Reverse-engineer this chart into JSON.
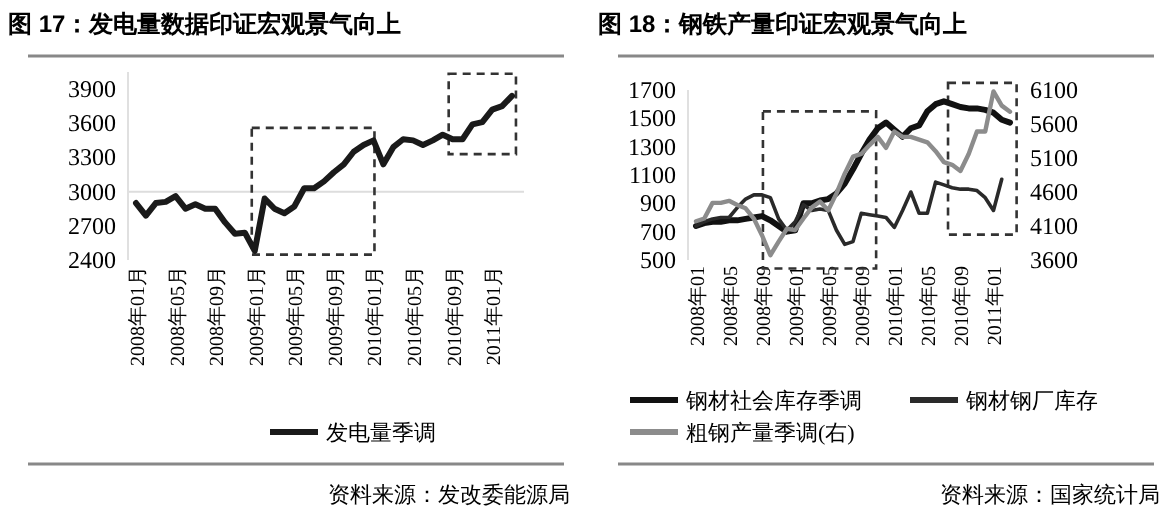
{
  "chart_data": [
    {
      "type": "line",
      "title": "图 17：发电量数据印证宏观景气向上",
      "categories": [
        "2008年01月",
        null,
        null,
        null,
        "2008年05月",
        null,
        null,
        null,
        "2008年09月",
        null,
        null,
        null,
        "2009年01月",
        null,
        null,
        null,
        "2009年05月",
        null,
        null,
        null,
        "2009年09月",
        null,
        null,
        null,
        "2010年01月",
        null,
        null,
        null,
        "2010年05月",
        null,
        null,
        null,
        "2010年09月",
        null,
        null,
        null,
        "2011年01月",
        null,
        null
      ],
      "series": [
        {
          "name": "发电量季调",
          "color": "#1a1a1a",
          "values": [
            2900,
            2790,
            2900,
            2910,
            2960,
            2850,
            2890,
            2850,
            2850,
            2730,
            2630,
            2640,
            2480,
            2940,
            2850,
            2810,
            2870,
            3030,
            3030,
            3090,
            3170,
            3240,
            3350,
            3410,
            3450,
            3240,
            3390,
            3460,
            3450,
            3410,
            3450,
            3500,
            3460,
            3460,
            3590,
            3610,
            3720,
            3750,
            3840
          ]
        }
      ],
      "ylim": [
        2400,
        4050
      ],
      "yticks": [
        2400,
        2700,
        3000,
        3300,
        3600,
        3900
      ],
      "ref_lines": [
        {
          "axis": "y",
          "value": 3000,
          "color": "#dddddd"
        }
      ],
      "legend": "bottom",
      "annotations": [
        "资料来源：发改委能源局"
      ]
    },
    {
      "type": "line",
      "title": "图 18：钢铁产量印证宏观景气向上",
      "categories": [
        "2008年01",
        null,
        null,
        null,
        "2008年05",
        null,
        null,
        null,
        "2008年09",
        null,
        null,
        null,
        "2009年01",
        null,
        null,
        null,
        "2009年05",
        null,
        null,
        null,
        "2009年09",
        null,
        null,
        null,
        "2010年01",
        null,
        null,
        null,
        "2010年05",
        null,
        null,
        null,
        "2010年09",
        null,
        null,
        null,
        "2011年01",
        null,
        null
      ],
      "series": [
        {
          "name": "钢材社会库存季调",
          "color": "#111111",
          "values": [
            740,
            760,
            770,
            770,
            780,
            780,
            790,
            800,
            810,
            780,
            740,
            700,
            710,
            900,
            900,
            920,
            930,
            970,
            1040,
            1140,
            1250,
            1350,
            1430,
            1470,
            1420,
            1370,
            1430,
            1450,
            1550,
            1600,
            1620,
            1600,
            1580,
            1570,
            1570,
            1560,
            1540,
            1490,
            1470
          ]
        },
        {
          "name": "钢材钢厂库存",
          "color": "#2a2a2a",
          "values": [
            740,
            770,
            790,
            800,
            800,
            870,
            930,
            960,
            960,
            940,
            790,
            710,
            770,
            890,
            850,
            860,
            850,
            710,
            610,
            630,
            830,
            820,
            810,
            800,
            730,
            850,
            980,
            830,
            830,
            1050,
            1030,
            1010,
            1000,
            1000,
            990,
            940,
            850,
            1070,
            null
          ]
        },
        {
          "name": "粗钢产量季调(右)",
          "color": "#8c8c8c",
          "axis": "y2",
          "values": [
            4170,
            4210,
            4440,
            4440,
            4470,
            4410,
            4360,
            4210,
            3960,
            3670,
            3870,
            4060,
            4040,
            4210,
            4370,
            4460,
            4330,
            4580,
            4870,
            5120,
            5160,
            5290,
            5410,
            5250,
            5490,
            5410,
            5410,
            5370,
            5330,
            5200,
            5040,
            5000,
            4910,
            5160,
            5490,
            5490,
            6080,
            5870,
            5780
          ]
        }
      ],
      "ylim": [
        500,
        1700
      ],
      "yticks": [
        500,
        700,
        900,
        1100,
        1300,
        1500,
        1700
      ],
      "y2lim": [
        3600,
        6100
      ],
      "y2ticks": [
        3600,
        4100,
        4600,
        5100,
        5600,
        6100
      ],
      "legend": "bottom",
      "annotations": [
        "资料来源：国家统计局"
      ]
    }
  ]
}
